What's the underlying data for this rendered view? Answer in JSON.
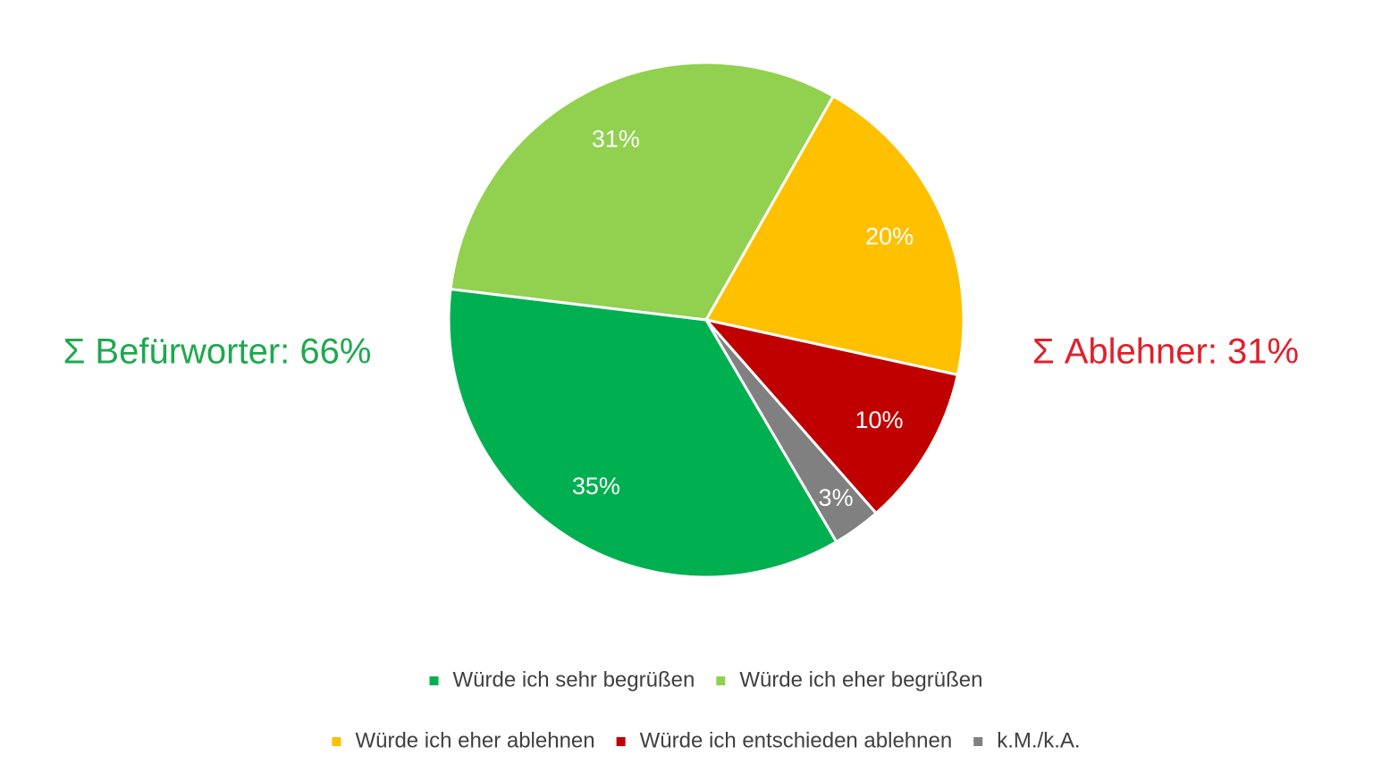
{
  "chart_data": {
    "type": "pie",
    "categories": [
      "Würde ich sehr begrüßen",
      "Würde ich eher begrüßen",
      "Würde ich eher ablehnen",
      "Würde ich entschieden ablehnen",
      "k.M./k.A."
    ],
    "values": [
      35,
      31,
      20,
      10,
      3
    ],
    "value_labels": [
      "35%",
      "31%",
      "20%",
      "10%",
      "3%"
    ],
    "colors": [
      "#00b050",
      "#92d050",
      "#ffc000",
      "#c00000",
      "#808080"
    ],
    "annotations": [
      {
        "text": "Σ Befürworter: 66%",
        "color": "#1fa84f"
      },
      {
        "text": "Σ Ablehner: 31%",
        "color": "#e0202a"
      }
    ],
    "legend": "bottom"
  }
}
